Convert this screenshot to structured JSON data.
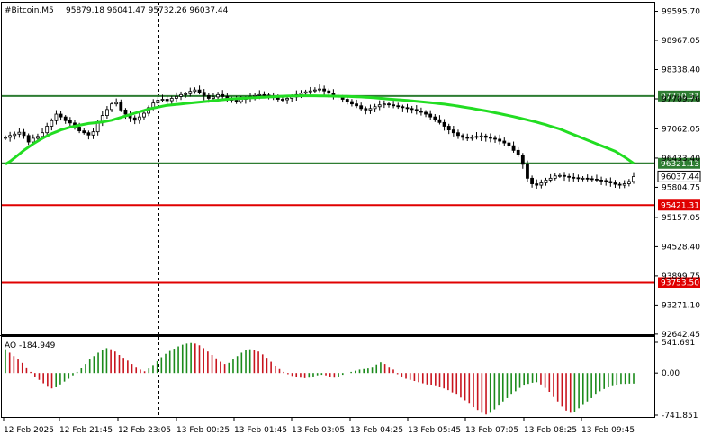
{
  "header": {
    "symbol": "#Bitcoin,M5",
    "ohlc": "95879.18 96041.47 95732.26 96037.44"
  },
  "chart_data": [
    {
      "type": "candlestick",
      "title": "#Bitcoin,M5  95879.18 96041.47 95732.26 96037.44",
      "ylim": [
        92640,
        99780
      ],
      "y_ticks": [
        "99595.70",
        "98967.05",
        "98338.40",
        "97709.76",
        "97062.05",
        "96433.40",
        "95804.75",
        "95157.05",
        "94528.40",
        "93899.75",
        "93271.10",
        "92642.45"
      ],
      "x_ticks": [
        "12 Feb 2025",
        "12 Feb 21:45",
        "12 Feb 23:05",
        "13 Feb 00:25",
        "13 Feb 01:45",
        "13 Feb 03:05",
        "13 Feb 04:25",
        "13 Feb 05:45",
        "13 Feb 07:05",
        "13 Feb 08:25",
        "13 Feb 09:45"
      ],
      "horizontal_levels": [
        {
          "label": "97770.31",
          "value": 97770.31,
          "color": "#2e7d32"
        },
        {
          "label": "96321.13",
          "value": 96321.13,
          "color": "#2e7d32"
        },
        {
          "label": "95421.31",
          "value": 95421.31,
          "color": "#e00000"
        },
        {
          "label": "93753.50",
          "value": 93753.5,
          "color": "#e00000"
        }
      ],
      "current_price": {
        "label": "96037.44",
        "value": 96037.44
      },
      "moving_average_color": "#22dd22",
      "close_series": [
        96880,
        96920,
        96950,
        96990,
        96920,
        96780,
        96860,
        96900,
        96980,
        97120,
        97240,
        97380,
        97320,
        97240,
        97190,
        97100,
        97020,
        96980,
        96930,
        97000,
        97200,
        97350,
        97480,
        97600,
        97630,
        97470,
        97380,
        97300,
        97250,
        97320,
        97400,
        97520,
        97620,
        97680,
        97700,
        97670,
        97720,
        97760,
        97800,
        97820,
        97870,
        97900,
        97850,
        97780,
        97720,
        97750,
        97800,
        97760,
        97700,
        97680,
        97650,
        97700,
        97720,
        97760,
        97780,
        97800,
        97790,
        97760,
        97740,
        97700,
        97690,
        97720,
        97750,
        97800,
        97830,
        97860,
        97880,
        97900,
        97920,
        97880,
        97830,
        97780,
        97750,
        97700,
        97650,
        97600,
        97560,
        97500,
        97470,
        97500,
        97540,
        97580,
        97600,
        97580,
        97560,
        97540,
        97520,
        97500,
        97480,
        97450,
        97420,
        97380,
        97320,
        97260,
        97200,
        97120,
        97040,
        96980,
        96920,
        96880,
        96860,
        96880,
        96900,
        96910,
        96880,
        96860,
        96840,
        96800,
        96760,
        96700,
        96600,
        96500,
        96300,
        96000,
        95880,
        95850,
        95900,
        95960,
        96000,
        96050,
        96060,
        96040,
        96020,
        96010,
        96000,
        96000,
        95990,
        95980,
        95960,
        95950,
        95930,
        95900,
        95870,
        95850,
        95880,
        95930,
        96037
      ],
      "ma_series": [
        96300,
        96360,
        96440,
        96520,
        96600,
        96670,
        96740,
        96800,
        96860,
        96910,
        96960,
        97000,
        97040,
        97070,
        97100,
        97120,
        97140,
        97160,
        97180,
        97190,
        97200,
        97210,
        97230,
        97250,
        97280,
        97310,
        97340,
        97370,
        97400,
        97430,
        97460,
        97490,
        97510,
        97530,
        97550,
        97570,
        97580,
        97590,
        97600,
        97610,
        97620,
        97630,
        97640,
        97650,
        97660,
        97670,
        97680,
        97690,
        97700,
        97710,
        97715,
        97720,
        97725,
        97730,
        97735,
        97740,
        97745,
        97750,
        97755,
        97760,
        97765,
        97770,
        97772,
        97774,
        97775,
        97776,
        97776,
        97775,
        97774,
        97772,
        97770,
        97768,
        97766,
        97764,
        97762,
        97758,
        97754,
        97750,
        97744,
        97738,
        97730,
        97722,
        97714,
        97706,
        97698,
        97690,
        97682,
        97674,
        97666,
        97656,
        97646,
        97636,
        97626,
        97616,
        97606,
        97596,
        97582,
        97568,
        97552,
        97536,
        97520,
        97504,
        97486,
        97468,
        97450,
        97430,
        97410,
        97390,
        97370,
        97348,
        97326,
        97304,
        97280,
        97256,
        97232,
        97208,
        97180,
        97152,
        97120,
        97090,
        97060,
        97020,
        96980,
        96940,
        96900,
        96860,
        96820,
        96780,
        96740,
        96700,
        96660,
        96620,
        96580,
        96520,
        96460,
        96390,
        96321
      ]
    },
    {
      "type": "bar",
      "title": "AO -184.949",
      "indicator": "AO",
      "last_value": -184.949,
      "ylim": [
        -741.851,
        541.691
      ],
      "y_ticks": [
        "541.691",
        "0.00",
        "-741.851"
      ],
      "color_up": "#1b8a1b",
      "color_down": "#c8141e",
      "values": [
        420,
        360,
        300,
        240,
        180,
        100,
        20,
        -60,
        -120,
        -180,
        -240,
        -270,
        -250,
        -200,
        -150,
        -100,
        -40,
        20,
        90,
        160,
        240,
        300,
        360,
        410,
        440,
        420,
        380,
        320,
        270,
        220,
        160,
        110,
        60,
        30,
        80,
        140,
        210,
        280,
        340,
        390,
        430,
        470,
        500,
        520,
        530,
        520,
        490,
        440,
        380,
        320,
        260,
        200,
        160,
        180,
        240,
        300,
        360,
        400,
        420,
        410,
        380,
        330,
        270,
        200,
        130,
        70,
        20,
        -20,
        -50,
        -70,
        -80,
        -90,
        -80,
        -60,
        -40,
        -30,
        -40,
        -60,
        -80,
        -60,
        -30,
        0,
        20,
        40,
        60,
        70,
        80,
        110,
        150,
        190,
        160,
        110,
        60,
        -20,
        -60,
        -100,
        -120,
        -140,
        -160,
        -180,
        -200,
        -210,
        -230,
        -250,
        -270,
        -300,
        -340,
        -380,
        -430,
        -480,
        -540,
        -600,
        -650,
        -700,
        -730,
        -700,
        -640,
        -570,
        -500,
        -440,
        -380,
        -320,
        -260,
        -220,
        -190,
        -170,
        -160,
        -200,
        -260,
        -330,
        -420,
        -500,
        -590,
        -660,
        -700,
        -680,
        -620,
        -560,
        -500,
        -440,
        -380,
        -320,
        -280,
        -250,
        -230,
        -210,
        -190,
        -190,
        -185,
        -184.949
      ]
    }
  ]
}
